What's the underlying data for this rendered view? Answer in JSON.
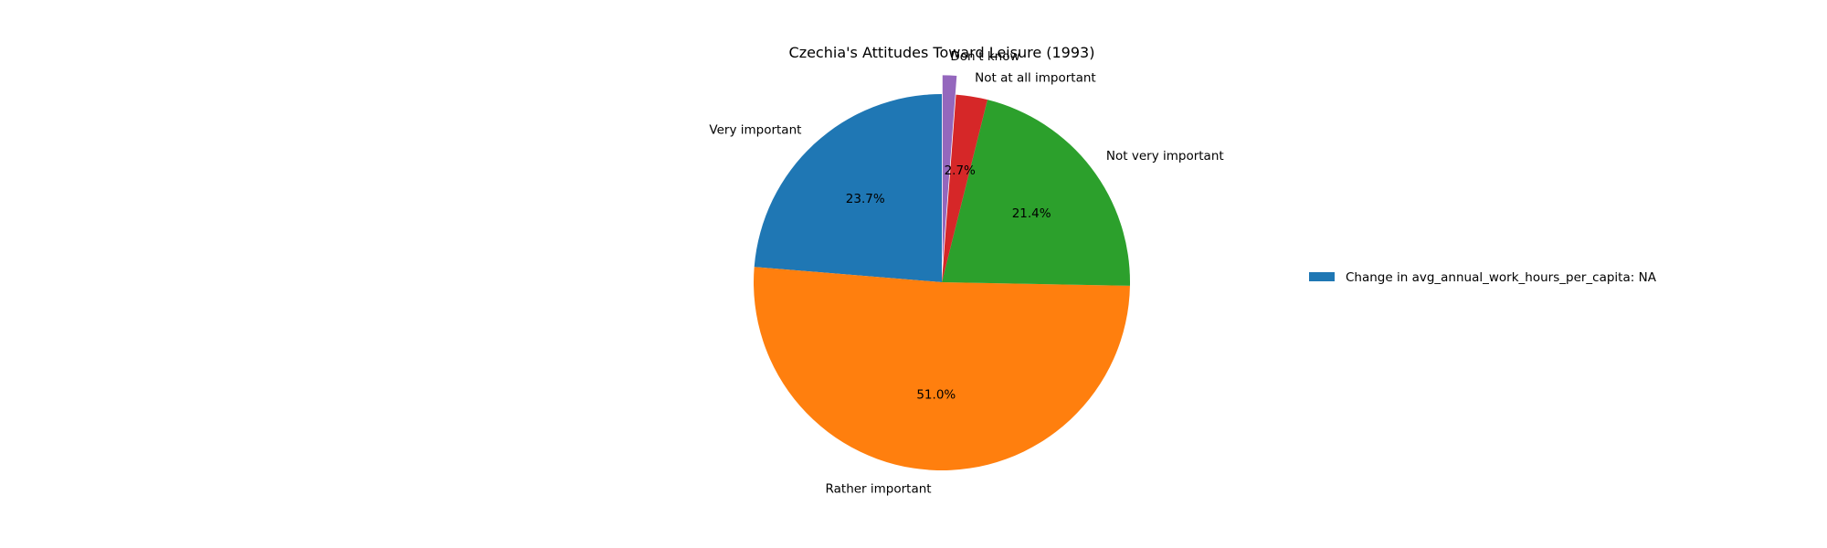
{
  "chart_data": {
    "type": "pie",
    "title": "Czechia's Attitudes Toward Leisure (1993)",
    "slices": [
      {
        "label": "Very important",
        "value": 23.7,
        "pct_label": "23.7%",
        "color": "#1f77b4"
      },
      {
        "label": "Rather important",
        "value": 51.0,
        "pct_label": "51.0%",
        "color": "#ff7f0e"
      },
      {
        "label": "Not very important",
        "value": 21.4,
        "pct_label": "21.4%",
        "color": "#2ca02c"
      },
      {
        "label": "Not at all important",
        "value": 2.7,
        "pct_label": "2.7%",
        "color": "#d62728"
      },
      {
        "label": "Don't know",
        "value": 1.2,
        "pct_label": "",
        "color": "#9467bd",
        "exploded": true
      }
    ],
    "legend": {
      "entries": [
        {
          "label": "Change in avg_annual_work_hours_per_capita: NA",
          "color": "#1f77b4"
        }
      ],
      "placement": "center-right"
    }
  }
}
